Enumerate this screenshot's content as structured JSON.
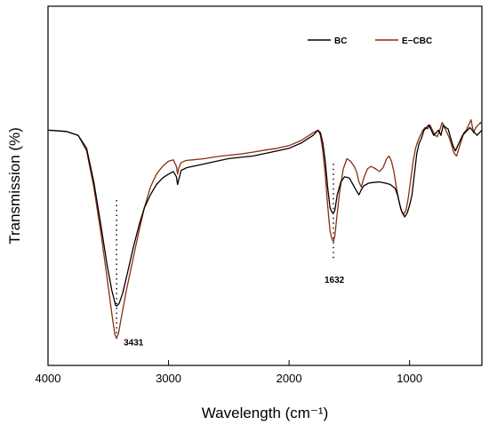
{
  "chart_data": {
    "type": "line",
    "title": "",
    "xlabel": "Wavelength (cm⁻¹)",
    "ylabel": "Transmission (%)",
    "x_ticks": [
      "4000",
      "3000",
      "2000",
      "1000"
    ],
    "x_tick_values": [
      4000,
      3000,
      2000,
      1000
    ],
    "xlim": [
      4000,
      400
    ],
    "x_reversed": true,
    "ylim": [
      0,
      100
    ],
    "y_ticks_visible": false,
    "grid": false,
    "legend_position": "top-right",
    "series": [
      {
        "name": "BC",
        "color": "#000000",
        "x": [
          4000,
          3850,
          3750,
          3680,
          3620,
          3560,
          3510,
          3470,
          3440,
          3431,
          3410,
          3380,
          3340,
          3290,
          3240,
          3200,
          3150,
          3100,
          3050,
          3000,
          2960,
          2935,
          2925,
          2915,
          2895,
          2870,
          2850,
          2800,
          2700,
          2600,
          2500,
          2400,
          2300,
          2200,
          2100,
          2000,
          1900,
          1800,
          1760,
          1740,
          1720,
          1700,
          1680,
          1660,
          1640,
          1632,
          1620,
          1600,
          1570,
          1540,
          1500,
          1470,
          1440,
          1420,
          1400,
          1380,
          1340,
          1300,
          1250,
          1200,
          1160,
          1120,
          1100,
          1080,
          1060,
          1040,
          1020,
          1000,
          980,
          960,
          940,
          920,
          900,
          880,
          860,
          840,
          820,
          800,
          780,
          760,
          740,
          720,
          700,
          680,
          660,
          640,
          620,
          600,
          580,
          560,
          540,
          520,
          500,
          480,
          460,
          440,
          420,
          400
        ],
        "y": [
          82,
          81.5,
          80,
          75,
          62,
          45,
          30,
          20,
          14.5,
          14,
          15,
          19,
          27,
          37,
          46,
          52,
          57,
          61,
          63.5,
          65,
          66,
          64,
          61,
          63,
          66.5,
          67,
          67.5,
          68,
          69,
          70,
          71,
          71.5,
          72,
          73,
          74,
          75,
          77,
          80,
          82,
          81,
          77,
          70,
          60,
          52,
          50,
          50,
          51,
          57,
          62,
          64,
          63.5,
          61,
          58.5,
          57,
          59,
          60.5,
          61.5,
          61.8,
          62,
          61.5,
          61,
          59.5,
          57,
          53,
          50,
          48.5,
          50,
          53,
          57,
          65,
          73,
          77,
          79,
          82,
          83,
          84,
          82,
          80,
          81,
          82,
          80,
          84,
          83,
          82.5,
          79,
          76,
          74,
          76,
          78,
          80,
          81,
          82,
          83,
          82,
          81,
          80,
          81,
          82
        ]
      },
      {
        "name": "E−CBC",
        "color": "#8b2e0e",
        "x": [
          4000,
          3850,
          3750,
          3680,
          3620,
          3560,
          3510,
          3470,
          3445,
          3431,
          3415,
          3390,
          3350,
          3300,
          3250,
          3200,
          3150,
          3100,
          3050,
          3000,
          2960,
          2935,
          2925,
          2915,
          2895,
          2870,
          2850,
          2800,
          2700,
          2600,
          2500,
          2400,
          2300,
          2200,
          2100,
          2000,
          1900,
          1800,
          1760,
          1740,
          1720,
          1700,
          1680,
          1660,
          1645,
          1632,
          1620,
          1605,
          1580,
          1550,
          1520,
          1490,
          1460,
          1440,
          1420,
          1400,
          1380,
          1350,
          1320,
          1280,
          1250,
          1220,
          1190,
          1170,
          1150,
          1130,
          1110,
          1090,
          1070,
          1050,
          1030,
          1010,
          990,
          970,
          950,
          930,
          910,
          890,
          870,
          850,
          830,
          810,
          790,
          770,
          750,
          730,
          710,
          690,
          670,
          650,
          630,
          610,
          590,
          570,
          550,
          530,
          510,
          490,
          470,
          450,
          430,
          410,
          400
        ],
        "y": [
          82,
          81.5,
          80,
          74,
          60,
          42,
          25,
          11,
          3,
          1.5,
          3.5,
          10,
          20,
          31,
          42,
          52,
          60,
          65,
          68,
          70,
          70.5,
          68,
          65,
          67.5,
          69.5,
          70,
          70.3,
          70.5,
          71,
          71.8,
          72.3,
          72.8,
          73.5,
          74.3,
          75,
          76,
          78,
          81,
          82,
          80,
          74,
          65,
          53,
          43,
          40,
          39,
          41,
          48,
          58,
          67,
          71,
          70,
          68,
          66,
          62,
          60,
          63.5,
          67,
          68,
          67,
          66,
          67.5,
          71,
          72,
          70,
          66,
          60,
          55,
          51,
          49.5,
          51,
          56,
          63,
          70,
          75,
          78,
          80,
          82,
          83,
          82.5,
          84,
          82,
          80,
          79.5,
          82,
          85,
          83,
          81,
          79,
          76,
          73,
          72,
          75,
          78,
          81,
          82,
          84,
          86,
          81,
          83,
          84,
          85,
          84
        ]
      }
    ],
    "annotations": [
      {
        "x": 3431,
        "label": "3431",
        "y_top": 55,
        "y_bottom": 1.5
      },
      {
        "x": 1632,
        "label": "1632",
        "y_top": 69,
        "y_bottom": 31
      }
    ]
  }
}
